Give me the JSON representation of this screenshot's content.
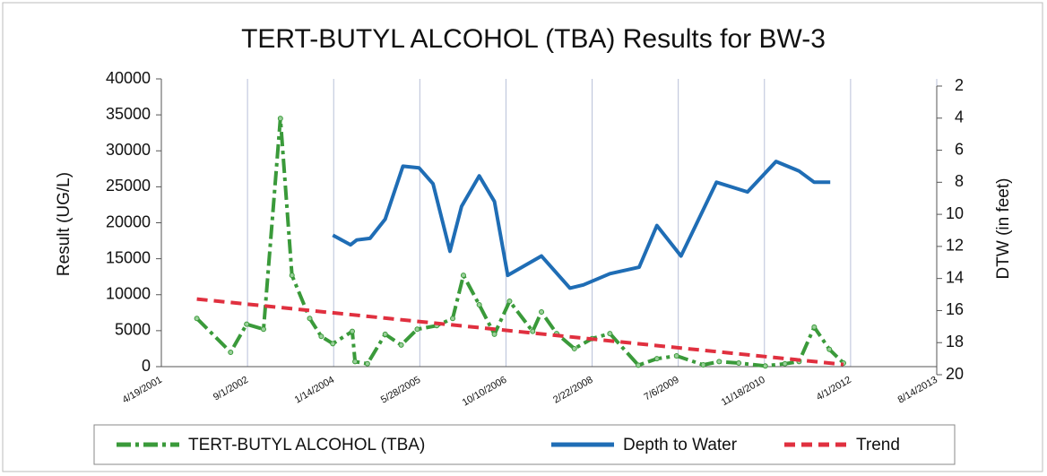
{
  "chart_data": {
    "type": "line",
    "title": "TERT-BUTYL ALCOHOL (TBA) Results for BW-3",
    "ylabel": "Result (UG/L)",
    "y2label": "DTW (in feet)",
    "xlim": [
      "4/19/2001",
      "8/14/2013"
    ],
    "xticks": [
      "4/19/2001",
      "9/1/2002",
      "1/14/2004",
      "5/28/2005",
      "10/10/2006",
      "2/22/2008",
      "7/6/2009",
      "11/18/2010",
      "4/1/2012",
      "8/14/2013"
    ],
    "ylim": [
      0,
      40000
    ],
    "yticks": [
      0,
      5000,
      10000,
      15000,
      20000,
      25000,
      30000,
      35000,
      40000
    ],
    "y2lim": [
      20,
      2
    ],
    "y2ticks": [
      2,
      4,
      6,
      8,
      10,
      12,
      14,
      16,
      18,
      20
    ],
    "grid": true,
    "legend": "bottom",
    "series": [
      {
        "name": "TERT-BUTYL ALCOHOL (TBA)",
        "color": "#3a9a3a",
        "style": "dashdot",
        "markers": true,
        "x": [
          "11/11/2001",
          "5/26/2002",
          "8/27/2002",
          "12/3/2002",
          "3/11/2003",
          "5/17/2003",
          "8/28/2003",
          "11/3/2003",
          "1/9/2004",
          "5/1/2004",
          "5/17/2004",
          "7/28/2004",
          "11/8/2004",
          "2/9/2005",
          "5/13/2005",
          "9/3/2005",
          "12/5/2005",
          "2/5/2006",
          "5/8/2006",
          "8/4/2006",
          "10/31/2006",
          "3/14/2007",
          "5/4/2007",
          "7/31/2007",
          "11/11/2007",
          "2/22/2008",
          "6/4/2008",
          "11/16/2008",
          "3/4/2009",
          "6/26/2009",
          "11/28/2009",
          "2/28/2010",
          "6/22/2010",
          "11/23/2010",
          "3/17/2011",
          "6/7/2011",
          "9/3/2011",
          "11/30/2011",
          "2/20/2012"
        ],
        "values": [
          6700,
          2000,
          5900,
          5200,
          34500,
          12700,
          6700,
          4200,
          3200,
          4900,
          700,
          400,
          4500,
          3000,
          5200,
          5700,
          6700,
          12700,
          8600,
          4500,
          9100,
          4900,
          7600,
          4600,
          2500,
          3900,
          4600,
          200,
          1100,
          1500,
          250,
          700,
          500,
          100,
          400,
          700,
          5500,
          2400,
          500
        ]
      },
      {
        "name": "Depth to Water",
        "color": "#1f6db5",
        "style": "solid",
        "axis": "y2",
        "x": [
          "1/9/2004",
          "4/21/2004",
          "5/27/2004",
          "8/12/2004",
          "11/8/2004",
          "2/19/2005",
          "5/23/2005",
          "8/13/2005",
          "11/19/2005",
          "1/25/2006",
          "5/8/2006",
          "8/4/2006",
          "10/20/2006",
          "5/4/2007",
          "10/16/2007",
          "1/2/2008",
          "6/4/2008",
          "11/21/2008",
          "3/4/2009",
          "7/22/2009",
          "2/13/2010",
          "8/12/2010",
          "1/24/2011",
          "6/7/2011",
          "9/3/2011",
          "12/5/2011"
        ],
        "values": [
          11.3,
          11.9,
          11.6,
          11.5,
          10.3,
          7.0,
          7.1,
          8.1,
          12.3,
          9.5,
          7.6,
          9.2,
          13.8,
          12.6,
          14.6,
          14.4,
          13.7,
          13.3,
          10.7,
          12.6,
          8.0,
          8.6,
          6.7,
          7.3,
          8.0,
          8.0
        ]
      },
      {
        "name": "Trend",
        "color": "#e0303f",
        "style": "dashed",
        "x": [
          "11/11/2001",
          "2/20/2012"
        ],
        "values": [
          9400,
          300
        ]
      }
    ]
  }
}
